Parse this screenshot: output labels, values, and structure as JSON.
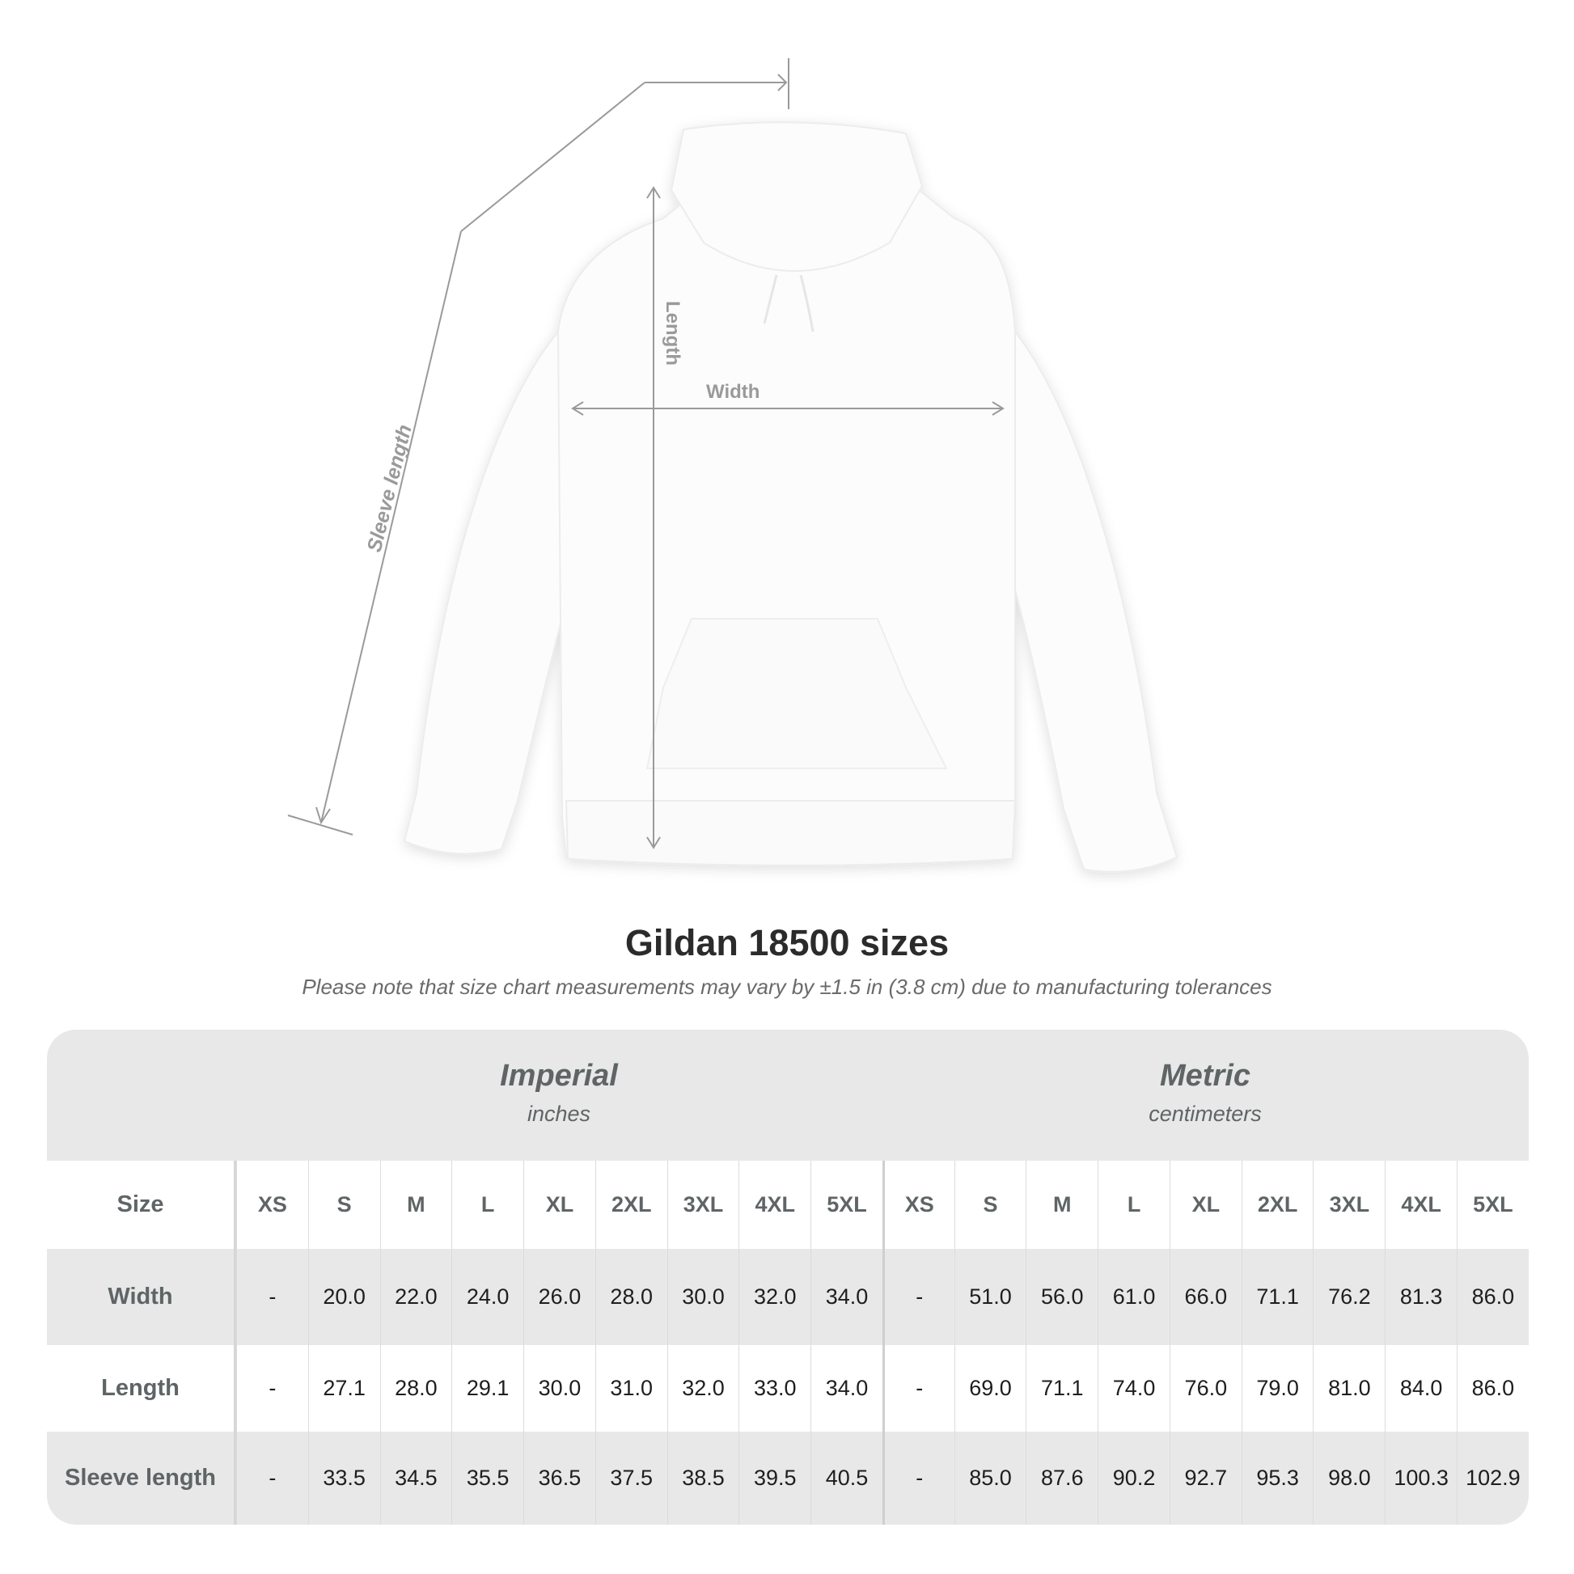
{
  "diagram": {
    "labels": {
      "length": "Length",
      "width": "Width",
      "sleeve": "Sleeve length"
    },
    "line_color": "#9a9a9a",
    "garment_color": "#ffffff"
  },
  "title": "Gildan 18500 sizes",
  "note": "Please note that size chart measurements may vary by ±1.5 in (3.8 cm) due to manufacturing tolerances",
  "table": {
    "imperial": {
      "name": "Imperial",
      "unit": "inches"
    },
    "metric": {
      "name": "Metric",
      "unit": "centimeters"
    },
    "size_label": "Size",
    "sizes": [
      "XS",
      "S",
      "M",
      "L",
      "XL",
      "2XL",
      "3XL",
      "4XL",
      "5XL"
    ],
    "rows": [
      {
        "label": "Width",
        "imperial": [
          "-",
          "20.0",
          "22.0",
          "24.0",
          "26.0",
          "28.0",
          "30.0",
          "32.0",
          "34.0"
        ],
        "metric": [
          "-",
          "51.0",
          "56.0",
          "61.0",
          "66.0",
          "71.1",
          "76.2",
          "81.3",
          "86.0"
        ]
      },
      {
        "label": "Length",
        "imperial": [
          "-",
          "27.1",
          "28.0",
          "29.1",
          "30.0",
          "31.0",
          "32.0",
          "33.0",
          "34.0"
        ],
        "metric": [
          "-",
          "69.0",
          "71.1",
          "74.0",
          "76.0",
          "79.0",
          "81.0",
          "84.0",
          "86.0"
        ]
      },
      {
        "label": "Sleeve length",
        "imperial": [
          "-",
          "33.5",
          "34.5",
          "35.5",
          "36.5",
          "37.5",
          "38.5",
          "39.5",
          "40.5"
        ],
        "metric": [
          "-",
          "85.0",
          "87.6",
          "90.2",
          "92.7",
          "95.3",
          "98.0",
          "100.3",
          "102.9"
        ]
      }
    ],
    "colors": {
      "header_bg": "#e8e8e8",
      "label_text": "#5f6566"
    }
  }
}
